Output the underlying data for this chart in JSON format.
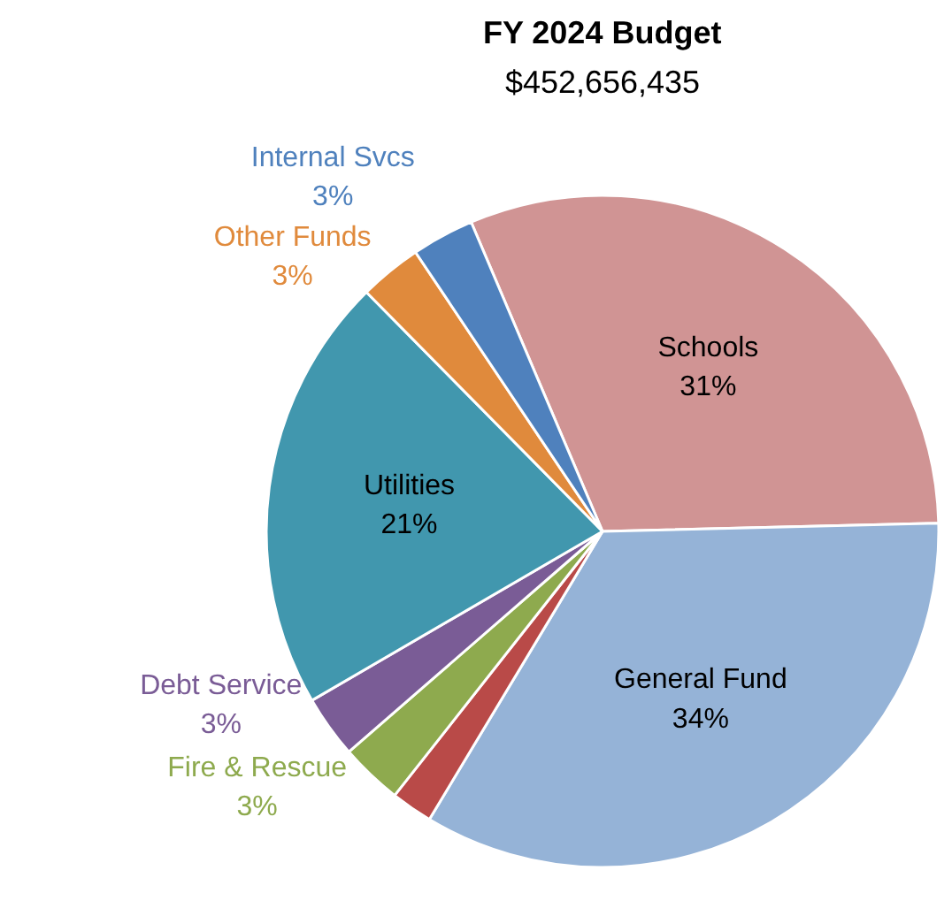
{
  "chart_data": {
    "type": "pie",
    "title": "FY 2024 Budget",
    "subtitle": "$452,656,435",
    "categories": [
      "Schools",
      "General Fund",
      null,
      "Fire & Rescue",
      "Debt Service",
      "Utilities",
      "Other Funds",
      "Internal Svcs"
    ],
    "values": [
      31,
      34,
      2,
      3,
      3,
      21,
      3,
      3
    ],
    "value_labels": [
      "31%",
      "34%",
      null,
      "3%",
      "3%",
      "21%",
      "3%",
      "3%"
    ],
    "colors": [
      "#d09494",
      "#95b3d7",
      "#b94a48",
      "#8eaa4e",
      "#7a5c96",
      "#4197ae",
      "#e08a3c",
      "#4f81bd"
    ]
  }
}
